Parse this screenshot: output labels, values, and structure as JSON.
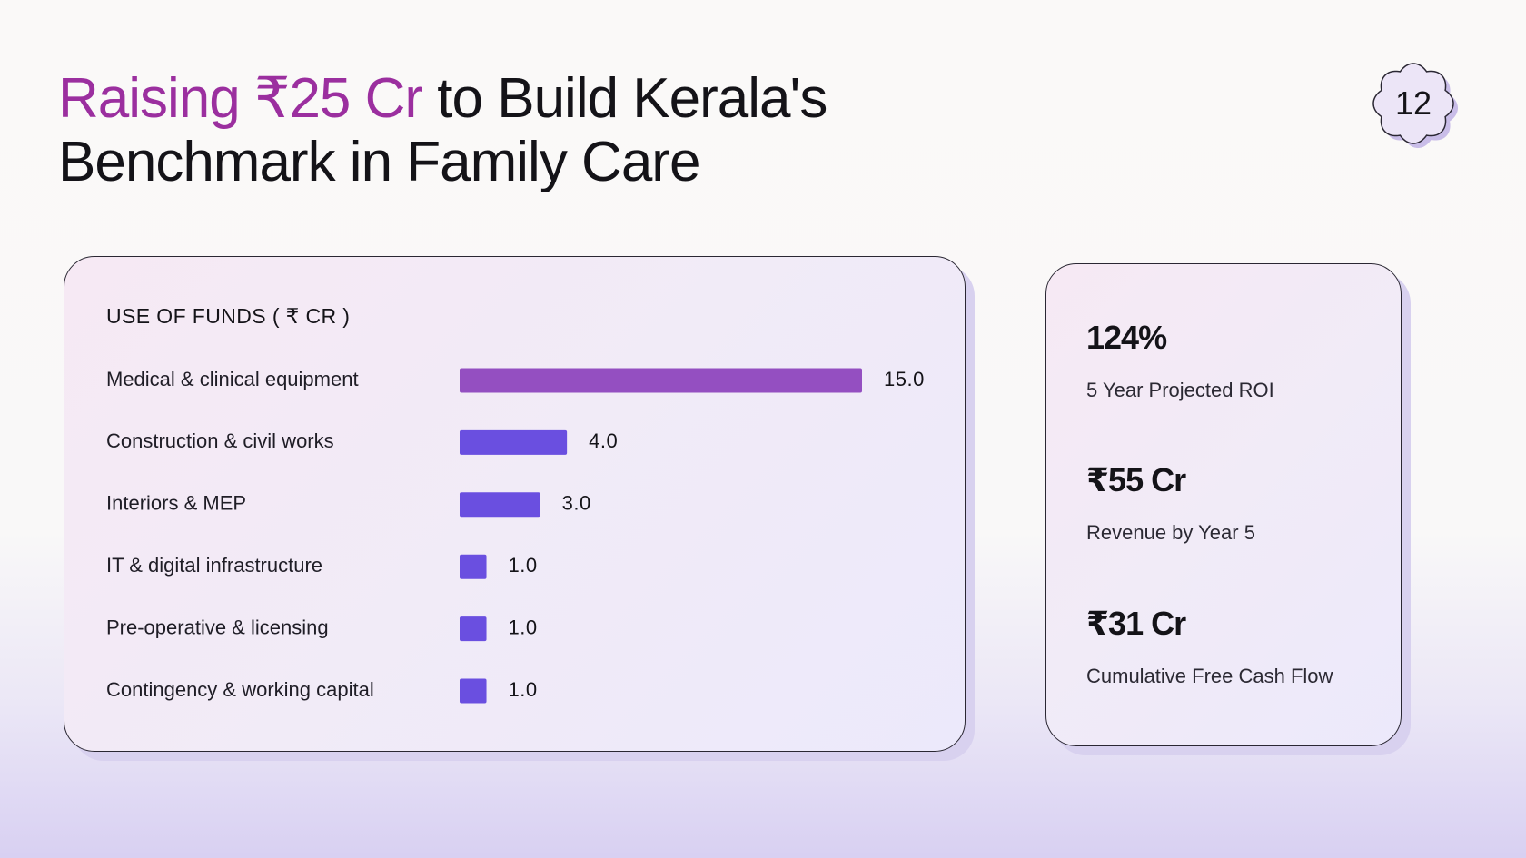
{
  "slide": {
    "title_accent": "Raising ₹25 Cr",
    "title_rest": " to Build Kerala's",
    "title_line2": "Benchmark in Family Care",
    "page_number": "12"
  },
  "colors": {
    "accent": "#9b2f9f",
    "bar_primary": "#944fc1",
    "bar_secondary": "#6a4fe0"
  },
  "funds": {
    "heading": "USE OF FUNDS ( ₹ CR )"
  },
  "chart_data": {
    "type": "bar",
    "orientation": "horizontal",
    "title": "USE OF FUNDS ( ₹ CR )",
    "categories": [
      "Medical & clinical equipment",
      "Construction & civil works",
      "Interiors & MEP",
      "IT & digital infrastructure",
      "Pre-operative & licensing",
      "Contingency & working capital"
    ],
    "values": [
      15.0,
      4.0,
      3.0,
      1.0,
      1.0,
      1.0
    ],
    "value_labels": [
      "15.0",
      "4.0",
      "3.0",
      "1.0",
      "1.0",
      "1.0"
    ],
    "bar_colors": [
      "#944fc1",
      "#6a4fe0",
      "#6a4fe0",
      "#6a4fe0",
      "#6a4fe0",
      "#6a4fe0"
    ],
    "xlim": [
      0,
      15
    ],
    "grid": false,
    "legend": "none"
  },
  "kpis": [
    {
      "value": "124%",
      "label": "5 Year Projected ROI"
    },
    {
      "value": "₹55 Cr",
      "label": "Revenue by Year 5"
    },
    {
      "value": "₹31 Cr",
      "label": "Cumulative Free Cash Flow"
    }
  ]
}
